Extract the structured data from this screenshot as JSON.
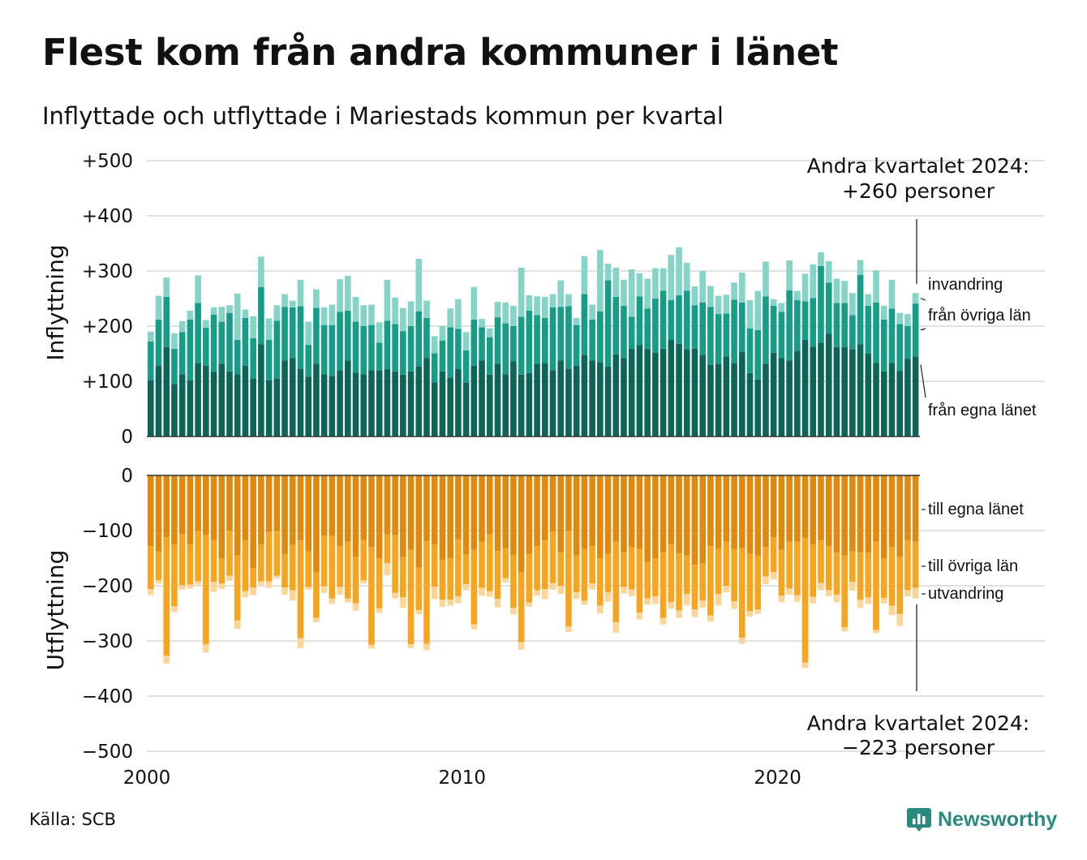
{
  "title": "Flest kom från andra kommuner i länet",
  "subtitle": "Inflyttade och utflyttade i Mariestads kommun per kvartal",
  "source": "Källa: SCB",
  "brand": "Newsworthy",
  "brand_icon": "newsworthy-logo-icon",
  "colors": {
    "in_own": "#0d6557",
    "in_other": "#179c88",
    "in_imm": "#86d3c8",
    "out_own": "#df8a0f",
    "out_other": "#f6a520",
    "out_emi": "#fcd598",
    "grid": "#e1e1e1",
    "text": "#111111"
  },
  "chart_data": {
    "type": "bar",
    "stacked": true,
    "x_start": "2000 Q1",
    "x_end": "2024 Q2",
    "x_ticks": [
      2000,
      2010,
      2020
    ],
    "grid": true,
    "in_panel": {
      "ylabel": "Inflyttning",
      "ylim": [
        0,
        500
      ],
      "yticks": [
        0,
        100,
        200,
        300,
        400,
        500
      ],
      "ytick_labels": [
        "0",
        "+100",
        "+200",
        "+300",
        "+400",
        "+500"
      ],
      "series": [
        {
          "name": "från egna länet",
          "values": [
            102,
            128,
            162,
            95,
            113,
            102,
            133,
            128,
            117,
            132,
            118,
            113,
            128,
            105,
            167,
            102,
            105,
            138,
            142,
            123,
            108,
            132,
            113,
            110,
            120,
            138,
            116,
            113,
            120,
            120,
            122,
            118,
            112,
            118,
            127,
            142,
            98,
            118,
            107,
            122,
            98,
            128,
            138,
            112,
            132,
            113,
            136,
            112,
            115,
            132,
            133,
            120,
            138,
            123,
            128,
            148,
            138,
            135,
            127,
            149,
            142,
            159,
            166,
            159,
            152,
            159,
            175,
            168,
            158,
            159,
            148,
            130,
            132,
            145,
            133,
            153,
            115,
            103,
            132,
            152,
            142,
            138,
            155,
            175,
            163,
            170,
            186,
            162,
            162,
            158,
            167,
            150,
            133,
            118,
            133,
            119,
            141,
            145
          ]
        },
        {
          "name": "från övriga län",
          "values": [
            70,
            84,
            91,
            64,
            76,
            110,
            109,
            69,
            104,
            76,
            106,
            62,
            87,
            73,
            104,
            73,
            105,
            97,
            92,
            113,
            58,
            101,
            89,
            92,
            106,
            90,
            92,
            87,
            82,
            50,
            88,
            86,
            79,
            82,
            100,
            73,
            53,
            56,
            91,
            73,
            58,
            84,
            60,
            68,
            84,
            92,
            64,
            105,
            113,
            88,
            82,
            114,
            97,
            113,
            74,
            110,
            74,
            92,
            156,
            104,
            95,
            58,
            88,
            73,
            98,
            105,
            72,
            88,
            106,
            79,
            95,
            105,
            90,
            78,
            115,
            90,
            81,
            90,
            122,
            85,
            84,
            127,
            92,
            70,
            88,
            139,
            93,
            80,
            80,
            62,
            126,
            87,
            110,
            94,
            99,
            85,
            59,
            96
          ]
        },
        {
          "name": "invandring",
          "values": [
            18,
            43,
            35,
            28,
            20,
            16,
            50,
            14,
            13,
            27,
            14,
            84,
            15,
            40,
            55,
            39,
            28,
            23,
            12,
            48,
            42,
            34,
            32,
            37,
            59,
            63,
            45,
            38,
            37,
            37,
            74,
            48,
            42,
            45,
            95,
            31,
            31,
            26,
            34,
            54,
            33,
            59,
            15,
            16,
            28,
            38,
            37,
            89,
            28,
            34,
            38,
            24,
            48,
            22,
            13,
            69,
            27,
            111,
            30,
            53,
            47,
            86,
            42,
            54,
            55,
            41,
            82,
            87,
            51,
            34,
            57,
            38,
            33,
            34,
            31,
            54,
            51,
            71,
            63,
            12,
            16,
            54,
            17,
            50,
            61,
            25,
            39,
            44,
            40,
            40,
            27,
            21,
            58,
            25,
            52,
            20,
            22,
            19
          ]
        }
      ],
      "labels": [
        "invandring",
        "från övriga län",
        "från egna länet"
      ],
      "annotation": [
        "Andra kvartalet 2024:",
        "+260 personer"
      ]
    },
    "out_panel": {
      "ylabel": "Utflyttning",
      "ylim": [
        -500,
        0
      ],
      "yticks": [
        0,
        -100,
        -200,
        -300,
        -400,
        -500
      ],
      "ytick_labels": [
        "0",
        "−100",
        "−200",
        "−300",
        "−400",
        "−500"
      ],
      "series": [
        {
          "name": "till egna länet",
          "values": [
            -128,
            -138,
            -112,
            -125,
            -107,
            -125,
            -100,
            -108,
            -117,
            -150,
            -100,
            -145,
            -118,
            -168,
            -125,
            -102,
            -100,
            -142,
            -125,
            -118,
            -138,
            -175,
            -110,
            -110,
            -128,
            -120,
            -148,
            -117,
            -130,
            -150,
            -107,
            -108,
            -148,
            -135,
            -167,
            -119,
            -125,
            -154,
            -150,
            -116,
            -143,
            -135,
            -120,
            -106,
            -137,
            -132,
            -145,
            -175,
            -142,
            -128,
            -118,
            -102,
            -140,
            -100,
            -145,
            -133,
            -128,
            -150,
            -142,
            -119,
            -140,
            -130,
            -133,
            -157,
            -150,
            -140,
            -125,
            -141,
            -145,
            -162,
            -160,
            -128,
            -133,
            -120,
            -133,
            -132,
            -142,
            -145,
            -130,
            -112,
            -135,
            -120,
            -120,
            -113,
            -125,
            -118,
            -128,
            -140,
            -145,
            -138,
            -140,
            -140,
            -120,
            -150,
            -130,
            -148,
            -118,
            -120
          ]
        },
        {
          "name": "till övriga län",
          "values": [
            -78,
            -52,
            -215,
            -112,
            -92,
            -73,
            -92,
            -198,
            -76,
            -46,
            -82,
            -118,
            -92,
            -35,
            -67,
            -90,
            -82,
            -61,
            -83,
            -177,
            -64,
            -83,
            -91,
            -113,
            -74,
            -103,
            -84,
            -73,
            -177,
            -91,
            -52,
            -105,
            -73,
            -171,
            -77,
            -186,
            -77,
            -71,
            -75,
            -103,
            -54,
            -135,
            -84,
            -104,
            -87,
            -54,
            -95,
            -127,
            -88,
            -80,
            -88,
            -93,
            -60,
            -174,
            -67,
            -94,
            -68,
            -86,
            -70,
            -147,
            -62,
            -77,
            -116,
            -66,
            -69,
            -118,
            -105,
            -104,
            -70,
            -81,
            -67,
            -126,
            -82,
            -80,
            -95,
            -162,
            -104,
            -98,
            -53,
            -63,
            -83,
            -85,
            -97,
            -226,
            -95,
            -77,
            -80,
            -76,
            -130,
            -55,
            -85,
            -81,
            -160,
            -72,
            -106,
            -103,
            -90,
            -84
          ]
        },
        {
          "name": "utvandring",
          "values": [
            -11,
            -6,
            -14,
            -11,
            -8,
            -7,
            -6,
            -15,
            -18,
            -10,
            -9,
            -15,
            -11,
            -14,
            -7,
            -12,
            -5,
            -13,
            -19,
            -18,
            -5,
            -8,
            -12,
            -10,
            -14,
            -7,
            -13,
            -6,
            -7,
            -8,
            -22,
            -10,
            -19,
            -7,
            -8,
            -12,
            -22,
            -13,
            -11,
            -13,
            -11,
            -9,
            -14,
            -10,
            -15,
            -8,
            -12,
            -14,
            -8,
            -10,
            -18,
            -12,
            -15,
            -10,
            -12,
            -7,
            -11,
            -14,
            -17,
            -19,
            -12,
            -12,
            -12,
            -11,
            -14,
            -12,
            -12,
            -13,
            -20,
            -14,
            -13,
            -11,
            -21,
            -12,
            -14,
            -11,
            -10,
            -8,
            -14,
            -13,
            -12,
            -11,
            -12,
            -10,
            -12,
            -13,
            -11,
            -14,
            -8,
            -16,
            -15,
            -12,
            -6,
            -10,
            -17,
            -22,
            -11,
            -19
          ]
        }
      ],
      "labels": [
        "till egna länet",
        "till övriga län",
        "utvandring"
      ],
      "annotation": [
        "Andra kvartalet 2024:",
        "−223 personer"
      ]
    }
  }
}
